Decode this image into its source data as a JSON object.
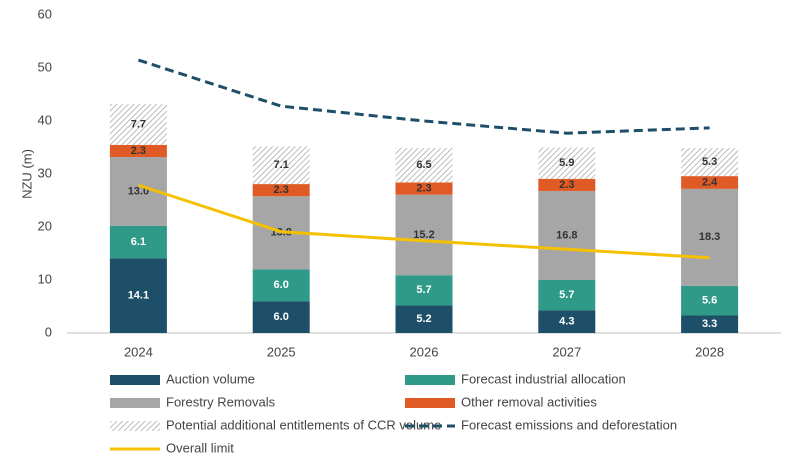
{
  "chart_data": {
    "type": "bar",
    "stacked": true,
    "ylabel": "NZU (m)",
    "categories": [
      "2024",
      "2025",
      "2026",
      "2027",
      "2028"
    ],
    "ylim": [
      0,
      60
    ],
    "yticks": [
      0,
      10,
      20,
      30,
      40,
      50,
      60
    ],
    "grid": false,
    "legend": "bottom",
    "series": [
      {
        "name": "Auction volume",
        "type": "bar",
        "color": "#1d5068",
        "label_color": "#ffffff",
        "values": [
          14.1,
          6.0,
          5.2,
          4.3,
          3.3
        ],
        "value_labels": [
          "14.1",
          "6.0",
          "5.2",
          "4.3",
          "3.3"
        ]
      },
      {
        "name": "Forecast industrial allocation",
        "type": "bar",
        "color": "#2e9a87",
        "label_color": "#ffffff",
        "values": [
          6.1,
          6.0,
          5.7,
          5.7,
          5.6
        ],
        "value_labels": [
          "6.1",
          "6.0",
          "5.7",
          "5.7",
          "5.6"
        ]
      },
      {
        "name": "Forestry Removals",
        "type": "bar",
        "color": "#a6a6a6",
        "label_color": "#333333",
        "values": [
          13.0,
          13.8,
          15.2,
          16.8,
          18.3
        ],
        "value_labels": [
          "13.0",
          "13.8",
          "15.2",
          "16.8",
          "18.3"
        ]
      },
      {
        "name": "Other removal activities",
        "type": "bar",
        "color": "#e05a25",
        "label_color": "#333333",
        "values": [
          2.3,
          2.3,
          2.3,
          2.3,
          2.4
        ],
        "value_labels": [
          "2.3",
          "2.3",
          "2.3",
          "2.3",
          "2.4"
        ]
      },
      {
        "name": "Potential additional entitlements of CCR volume",
        "type": "bar",
        "color": "#a6a6a6",
        "pattern": "hatch",
        "label_color": "#333333",
        "values": [
          7.7,
          7.1,
          6.5,
          5.9,
          5.3
        ],
        "value_labels": [
          "7.7",
          "7.1",
          "6.5",
          "5.9",
          "5.3"
        ]
      },
      {
        "name": "Forecast emissions and deforestation",
        "type": "line",
        "color": "#1d5068",
        "line_style": "dashed",
        "values": [
          51.5,
          42.8,
          40.0,
          37.7,
          38.7
        ]
      },
      {
        "name": "Overall limit",
        "type": "line",
        "color": "#f5c000",
        "line_style": "solid",
        "values": [
          27.9,
          19.1,
          17.4,
          15.8,
          14.2
        ]
      }
    ]
  }
}
